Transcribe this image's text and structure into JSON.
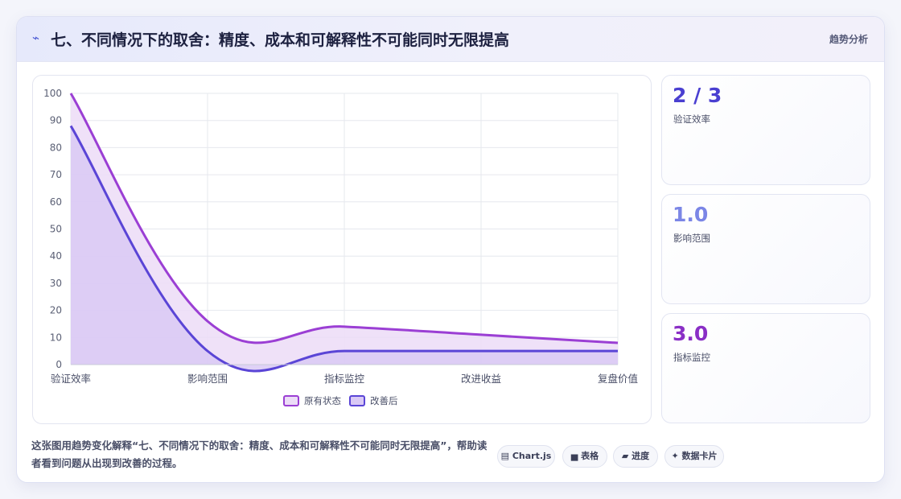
{
  "header": {
    "icon": "trend-icon",
    "title": "七、不同情况下的取舍：精度、成本和可解释性不可能同时无限提高",
    "tag": "趋势分析"
  },
  "stats": [
    {
      "value": "2 / 3",
      "label": "验证效率",
      "color": "#4a3fd1"
    },
    {
      "value": "1.0",
      "label": "影响范围",
      "color": "#7b86e6"
    },
    {
      "value": "3.0",
      "label": "指标监控",
      "color": "#8a2fc6"
    }
  ],
  "caption": "这张图用趋势变化解释“七、不同情况下的取舍：精度、成本和可解释性不可能同时无限提高”，帮助读者看到问题从出现到改善的过程。",
  "chips": [
    "▤ Chart.js",
    "▅ 表格",
    "▰ 进度",
    "✦ 数据卡片"
  ],
  "chart_data": {
    "type": "area",
    "categories": [
      "验证效率",
      "影响范围",
      "指标监控",
      "改进收益",
      "复盘价值"
    ],
    "ylim": [
      0,
      100
    ],
    "yticks": [
      0,
      10,
      20,
      30,
      40,
      50,
      60,
      70,
      80,
      90,
      100
    ],
    "grid": true,
    "legend_position": "bottom",
    "series": [
      {
        "name": "原有状态",
        "values": [
          100,
          16,
          14,
          11,
          8
        ],
        "color": "#9b3fd4",
        "fill": "#ecdcf7"
      },
      {
        "name": "改善后",
        "values": [
          88,
          5,
          5,
          5,
          5
        ],
        "color": "#5a45d6",
        "fill": "#d9c9f5"
      }
    ]
  }
}
